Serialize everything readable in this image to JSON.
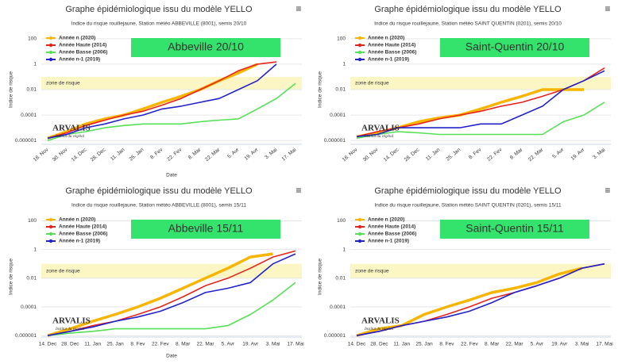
{
  "chart_data": [
    {
      "type": "line",
      "title": "Graphe épidémiologique issu du modèle YELLO",
      "subtitle": "Indice du risque rouillejaune, Station météo ABBEVILLE (8001), semis 20/10",
      "label": "Abbeville 20/10",
      "y_label": "Indice de risque",
      "x_label": "Date",
      "annotation": "zone de risque",
      "risk_zone": [
        0.01,
        0.1
      ],
      "log_scale": true,
      "grid": true,
      "legend": "top-left",
      "rotate_x_labels": true,
      "logo": "ARVALIS",
      "logo_sub": "Institut du végétal",
      "categories": [
        "16. Nov",
        "30. Nov",
        "14. Dec",
        "28. Dec",
        "11. Jan",
        "25. Jan",
        "8. Fev",
        "22. Fev",
        "8. Mar",
        "22. Mar",
        "5. Avr",
        "19. Avr",
        "3. Mai",
        "17. Mai"
      ],
      "ylim": [
        5e-07,
        200
      ],
      "yticks": [
        1e-06,
        0.0001,
        0.01,
        1,
        100
      ],
      "series": [
        {
          "name": "Année n (2020)",
          "color": "#f7b500",
          "values": [
            1.5e-06,
            5e-06,
            2e-05,
            5e-05,
            0.0001,
            0.0003,
            0.001,
            0.003,
            0.01,
            0.05,
            0.2,
            1,
            null,
            null
          ]
        },
        {
          "name": "Année Haute (2014)",
          "color": "#e8231c",
          "values": [
            1.5e-06,
            4e-06,
            1.5e-05,
            4e-05,
            0.0001,
            0.0002,
            0.0006,
            0.002,
            0.01,
            0.05,
            0.3,
            1,
            1.5,
            null
          ]
        },
        {
          "name": "Année Basse (2006)",
          "color": "#55e055",
          "values": [
            1e-06,
            3e-06,
            5e-06,
            1e-05,
            1.5e-05,
            2e-05,
            2e-05,
            2e-05,
            3e-05,
            4e-05,
            5e-05,
            0.0003,
            0.002,
            0.03
          ]
        },
        {
          "name": "Année n-1 (2019)",
          "color": "#2222cc",
          "values": [
            1.5e-06,
            3e-06,
            1e-05,
            2e-05,
            5e-05,
            0.0001,
            0.0003,
            0.0005,
            0.001,
            0.002,
            0.01,
            0.05,
            1,
            null
          ]
        }
      ]
    },
    {
      "type": "line",
      "title": "Graphe épidémiologique issu du modèle YELLO",
      "subtitle": "Indice du risque rouillejaune, Station météo SAINT QUENTIN (0201), semis 20/10",
      "label": "Saint-Quentin 20/10",
      "y_label": "Indice de risque",
      "annotation": "zone de risque",
      "risk_zone": [
        0.01,
        0.1
      ],
      "log_scale": true,
      "grid": true,
      "legend": "top-left",
      "rotate_x_labels": true,
      "logo": "ARVALIS",
      "logo_sub": "Institut du végétal",
      "categories": [
        "16. Nov",
        "30. Nov",
        "14. Dec",
        "28. Dec",
        "11. Jan",
        "25. Jan",
        "8. Fev",
        "22. Fev",
        "8. Mar",
        "22. Mar",
        "5. Avr",
        "19. Avr",
        "3. Mai"
      ],
      "ylim": [
        5e-07,
        200
      ],
      "yticks": [
        1e-06,
        0.0001,
        0.01,
        1,
        100
      ],
      "series": [
        {
          "name": "Année n (2020)",
          "color": "#f7b500",
          "values": [
            2e-06,
            4e-06,
            1e-05,
            3e-05,
            6e-05,
            0.0001,
            0.0003,
            0.001,
            0.003,
            0.01,
            0.01,
            0.01,
            null
          ]
        },
        {
          "name": "Année Haute (2014)",
          "color": "#e8231c",
          "values": [
            2e-06,
            5e-06,
            1e-05,
            2e-05,
            5e-05,
            0.0001,
            0.0002,
            0.0005,
            0.001,
            0.003,
            0.01,
            0.05,
            0.5
          ]
        },
        {
          "name": "Année Basse (2006)",
          "color": "#55e055",
          "values": [
            1.5e-06,
            3e-06,
            5e-06,
            4e-06,
            3e-06,
            3e-06,
            3e-06,
            3e-06,
            3e-06,
            3e-06,
            3e-05,
            0.0001,
            0.001
          ]
        },
        {
          "name": "Année n-1 (2019)",
          "color": "#2222cc",
          "values": [
            2e-06,
            3e-06,
            1e-05,
            1e-05,
            1e-05,
            1e-05,
            2e-05,
            2e-05,
            0.0001,
            0.0005,
            0.01,
            0.05,
            0.3
          ]
        }
      ]
    },
    {
      "type": "line",
      "title": "Graphe épidémiologique issu du modèle YELLO",
      "subtitle": "Indice du risque rouillejaune, Station météo ABBEVILLE (8001), semis 15/11",
      "label": "Abbeville 15/11",
      "y_label": "Indice de risque",
      "x_label": "Date",
      "annotation": "zone de risque",
      "risk_zone": [
        0.01,
        0.1
      ],
      "log_scale": true,
      "grid": true,
      "legend": "top-left",
      "rotate_x_labels": false,
      "logo": "ARVALIS",
      "logo_sub": "Institut du végétal",
      "categories": [
        "14. Dec",
        "28. Dec",
        "11. Jan",
        "25. Jan",
        "8. Fev",
        "22. Fev",
        "8. Mar",
        "22. Mar",
        "5. Avr",
        "19. Avr",
        "3. Mai",
        "17. Mai"
      ],
      "ylim": [
        8e-07,
        200
      ],
      "yticks": [
        1e-06,
        0.0001,
        0.01,
        1,
        100
      ],
      "series": [
        {
          "name": "Année n (2020)",
          "color": "#f7b500",
          "values": [
            1e-06,
            3e-06,
            1e-05,
            3e-05,
            0.0001,
            0.0004,
            0.002,
            0.01,
            0.05,
            0.3,
            0.5,
            null
          ]
        },
        {
          "name": "Année Haute (2014)",
          "color": "#e8231c",
          "values": [
            1e-06,
            2e-06,
            5e-06,
            1e-05,
            3e-05,
            0.0001,
            0.0005,
            0.003,
            0.01,
            0.05,
            0.3,
            0.8
          ]
        },
        {
          "name": "Année Basse (2006)",
          "color": "#55e055",
          "values": [
            1e-06,
            1.5e-06,
            2e-06,
            3e-06,
            3e-06,
            3e-06,
            3e-06,
            3e-06,
            5e-06,
            3e-05,
            0.0003,
            0.005
          ]
        },
        {
          "name": "Année n-1 (2019)",
          "color": "#2222cc",
          "values": [
            1e-06,
            2e-06,
            4e-06,
            1e-05,
            2e-05,
            5e-05,
            0.0002,
            0.001,
            0.002,
            0.005,
            0.1,
            0.5
          ]
        }
      ]
    },
    {
      "type": "line",
      "title": "Graphe épidémiologique issu du modèle YELLO",
      "subtitle": "Indice du risque rouillejaune, Station météo SAINT QUENTIN (0201), semis 15/11",
      "label": "Saint-Quentin 15/11",
      "y_label": "Indice de risque",
      "annotation": "zone de risque",
      "risk_zone": [
        0.01,
        0.1
      ],
      "log_scale": true,
      "grid": true,
      "legend": "top-left",
      "rotate_x_labels": false,
      "logo": "ARVALIS",
      "logo_sub": "Institut du végétal",
      "categories": [
        "14. Dec",
        "28. Dec",
        "11. Jan",
        "25. Jan",
        "8. Fev",
        "22. Fev",
        "8. Mar",
        "22. Mar",
        "5. Avr",
        "19. Avr",
        "3. Mai",
        "17. Mai"
      ],
      "ylim": [
        8e-07,
        200
      ],
      "yticks": [
        1e-06,
        0.0001,
        0.01,
        1,
        100
      ],
      "series": [
        {
          "name": "Année n (2020)",
          "color": "#f7b500",
          "values": [
            1e-06,
            3e-06,
            5e-06,
            3e-05,
            0.0001,
            0.0003,
            0.001,
            0.002,
            0.005,
            0.02,
            0.05,
            null
          ]
        },
        {
          "name": "Année Haute (2014)",
          "color": "#e8231c",
          "values": [
            1e-06,
            2e-06,
            5e-06,
            1e-05,
            3e-05,
            0.0001,
            0.0004,
            0.001,
            0.003,
            0.01,
            0.05,
            0.1
          ]
        },
        {
          "name": "Année Basse (2006)",
          "color": "#55e055",
          "values": [
            null,
            null,
            null,
            null,
            null,
            null,
            null,
            null,
            null,
            null,
            null,
            null
          ]
        },
        {
          "name": "Année n-1 (2019)",
          "color": "#2222cc",
          "values": [
            1e-06,
            2e-06,
            5e-06,
            1e-05,
            2e-05,
            5e-05,
            0.0002,
            0.001,
            0.003,
            0.01,
            0.05,
            0.1
          ]
        }
      ]
    }
  ]
}
